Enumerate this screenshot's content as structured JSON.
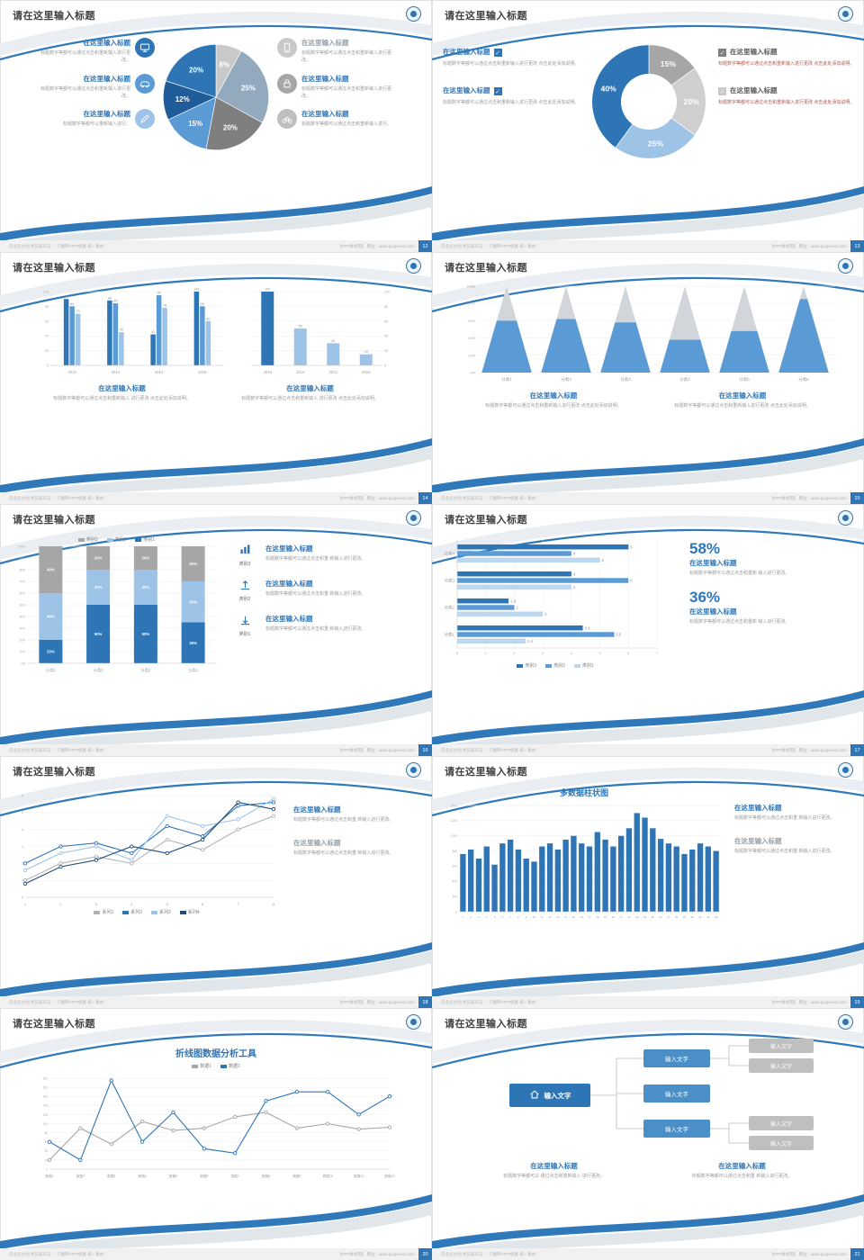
{
  "global": {
    "slide_title": "请在这里输入标题",
    "heading_label": "在这里输入标题",
    "footer_left": "毕业论文|论文答辩方法 ｜ 千图网·PPT模板·第一素材",
    "footer_right": "【PPT样式网】 网址：www.pptgenius.com",
    "colors": {
      "accent_blue": "#2e75b6",
      "blue_mid": "#5b9bd5",
      "blue_light": "#9dc3e6",
      "gray": "#a6a6a6",
      "navy": "#1f5c99",
      "red_text": "#b0574d"
    }
  },
  "slides": [
    {
      "page": "12",
      "left_items": [
        {
          "heading": "在这里输入标题",
          "text": "标题数字等都可以通过点击和重新输入进行更改。",
          "icon": "monitor"
        },
        {
          "heading": "在这里输入标题",
          "text": "标题数字等都可以通过点击和重新输入进行更改。",
          "icon": "car"
        },
        {
          "heading": "在这里输入标题",
          "text": "标题数字等都可以重新输入进行。",
          "icon": "pen"
        }
      ],
      "right_items": [
        {
          "heading": "在这里输入标题",
          "text": "标题数字等都可以通过点击和重新输入进行更改。",
          "icon": "smartphone"
        },
        {
          "heading": "在这里输入标题",
          "text": "标题数字等都可以通过点击和重新输入进行更改。",
          "icon": "lock"
        },
        {
          "heading": "在这里输入标题",
          "text": "标题数字等都可以通过点击和重新输入进行。",
          "icon": "bicycle"
        }
      ],
      "chart_data": {
        "type": "pie",
        "labels": [
          "8%",
          "25%",
          "20%",
          "15%",
          "12%",
          "20%"
        ],
        "values": [
          8,
          25,
          20,
          15,
          12,
          20
        ],
        "colors": [
          "#c9c9c9",
          "#93a9bd",
          "#7f7f7f",
          "#5b9bd5",
          "#1f5c99",
          "#2e75b6"
        ]
      }
    },
    {
      "page": "13",
      "left_items": [
        {
          "heading": "在这里输入标题",
          "text": "标题数字等都可以通过点击和重新输入进行更改 点击此处添加说明。"
        },
        {
          "heading": "在这里输入标题",
          "text": "标题数字等都可以通过点击和重新输入进行更改 点击此处添加说明。"
        }
      ],
      "right_items": [
        {
          "heading": "在这里输入标题",
          "text": "标题数字等都可以通过点击和重新输入进行更改 点击此处添加说明。"
        },
        {
          "heading": "在这里输入标题",
          "text": "标题数字等都可以通过点击和重新输入进行更改 点击此处添加说明。"
        }
      ],
      "chart_data": {
        "type": "pie",
        "subtype": "donut",
        "labels": [
          "15%",
          "20%",
          "25%",
          "40%"
        ],
        "values": [
          15,
          20,
          25,
          40
        ],
        "colors": [
          "#a6a6a6",
          "#cfcfcf",
          "#9dc3e6",
          "#2e75b6"
        ]
      }
    },
    {
      "page": "14",
      "sections": [
        {
          "heading": "在这里输入标题",
          "text": "标题数字等都可以通过点击和重新输入 进行更改 点击此处添加说明。"
        },
        {
          "heading": "在这里输入标题",
          "text": "标题数字等都可以通过点击和重新输入 进行更改 点击此处添加说明。"
        }
      ],
      "chart_data": [
        {
          "type": "bar",
          "categories": [
            "2010",
            "2012",
            "2014",
            "2016"
          ],
          "series": [
            {
              "name": "系列1",
              "color": "#2e75b6",
              "values": [
                90,
                88,
                42,
                100
              ]
            },
            {
              "name": "系列2",
              "color": "#5b9bd5",
              "values": [
                80,
                84,
                95,
                80
              ]
            },
            {
              "name": "系列3",
              "color": "#9dc3e6",
              "values": [
                70,
                45,
                78,
                60
              ]
            }
          ],
          "ylim": [
            0,
            100
          ]
        },
        {
          "type": "bar",
          "categories": [
            "2016",
            "2014",
            "2012",
            "2010"
          ],
          "series": [
            {
              "name": "数据",
              "colors": [
                "#2e75b6",
                "#9dc3e6",
                "#9dc3e6",
                "#9dc3e6"
              ],
              "values": [
                100,
                50,
                30,
                15
              ]
            }
          ],
          "ylim": [
            0,
            100
          ]
        }
      ]
    },
    {
      "page": "15",
      "sections": [
        {
          "heading": "在这里输入标题",
          "text": "标题数字等都可以通过点击和重新输入进行更改 点击此处添加说明。"
        },
        {
          "heading": "在这里输入标题",
          "text": "标题数字等都可以通过点击和重新输入进行更改 点击此处添加说明。"
        }
      ],
      "chart_data": {
        "type": "pyramid",
        "categories": [
          "分类1",
          "分类2",
          "分类3",
          "分类4",
          "分类5",
          "分类6"
        ],
        "values_pct": [
          60,
          62,
          58,
          38,
          48,
          85
        ],
        "ylim": [
          0,
          100
        ]
      }
    },
    {
      "page": "16",
      "right_items": [
        {
          "label": "类别3",
          "icon": "bar-chart",
          "heading": "在这里输入标题",
          "text": "标题数字等都可以通过点击和重 新输入进行更改。"
        },
        {
          "label": "类别2",
          "icon": "upload",
          "heading": "在这里输入标题",
          "text": "标题数字等都可以通过点击和重 新输入进行更改。"
        },
        {
          "label": "类别1",
          "icon": "download",
          "heading": "在这里输入标题",
          "text": "标题数字等都可以通过点击和重 新输入进行更改。"
        }
      ],
      "chart_data": {
        "type": "bar",
        "subtype": "stacked-100",
        "categories": [
          "分类1",
          "分类2",
          "分类3",
          "分类4"
        ],
        "series": [
          {
            "name": "类别1",
            "color": "#2e75b6",
            "values": [
              20,
              50,
              50,
              35
            ]
          },
          {
            "name": "类别2",
            "color": "#9dc3e6",
            "values": [
              40,
              30,
              30,
              35
            ]
          },
          {
            "name": "类别3",
            "color": "#a6a6a6",
            "values": [
              40,
              20,
              20,
              30
            ]
          }
        ],
        "legend": [
          "类别3",
          "类别2",
          "类别1"
        ],
        "ylim": [
          0,
          100
        ]
      }
    },
    {
      "page": "17",
      "stats": [
        {
          "value": "58%",
          "heading": "在这里输入标题",
          "text": "标题数字等都可以通过点击和重新 输入进行更改。"
        },
        {
          "value": "36%",
          "heading": "在这里输入标题",
          "text": "标题数字等都可以通过点击和重新 输入进行更改。"
        }
      ],
      "chart_data": {
        "type": "bar",
        "subtype": "horizontal",
        "categories": [
          "分类4",
          "分类3",
          "分类2",
          "分类1"
        ],
        "series": [
          {
            "name": "类别3",
            "color": "#2e75b6",
            "values": [
              6,
              4,
              1.8,
              4.4
            ]
          },
          {
            "name": "类别2",
            "color": "#5b9bd5",
            "values": [
              4,
              6,
              2,
              5.5
            ]
          },
          {
            "name": "类别1",
            "color": "#bdd7ee",
            "values": [
              5,
              4,
              3,
              2.4
            ]
          }
        ],
        "xlim": [
          0,
          7
        ],
        "legend": [
          "类别3",
          "类别2",
          "类别1"
        ]
      }
    },
    {
      "page": "18",
      "sections": [
        {
          "heading": "在这里输入标题",
          "text": "标题数字等都可以通过点击和重 新输入进行更改。"
        },
        {
          "heading": "在这里输入标题",
          "text": "标题数字等都可以通过点击和重 新输入进行更改。"
        }
      ],
      "chart_data": {
        "type": "line",
        "x_labels": [
          "1",
          "2",
          "3",
          "4",
          "5",
          "6",
          "7",
          "8"
        ],
        "series": [
          {
            "name": "系列1",
            "color": "#b3b3b3",
            "values": [
              1,
              2,
              2.4,
              2,
              3.4,
              2.8,
              4,
              4.8
            ]
          },
          {
            "name": "系列2",
            "color": "#2e75b6",
            "values": [
              2,
              3,
              3.2,
              2.6,
              4.2,
              3.6,
              5.4,
              5.6
            ]
          },
          {
            "name": "系列3",
            "color": "#9dc3e6",
            "values": [
              1.6,
              2.6,
              3,
              2.2,
              4.8,
              4.2,
              4.6,
              5.8
            ]
          },
          {
            "name": "系列4",
            "color": "#1f4e79",
            "values": [
              0.8,
              1.8,
              2.2,
              3,
              2.6,
              3.4,
              5.6,
              5.2
            ]
          }
        ],
        "ylim": [
          0,
          6
        ]
      }
    },
    {
      "page": "19",
      "chart_title": "多数据柱状图",
      "sections": [
        {
          "heading": "在这里输入标题",
          "text": "标题数字等都可以通过点击和重 新输入进行更改。"
        },
        {
          "heading": "在这里输入标题",
          "text": "标题数字等都可以通过点击和重 新输入进行更改。"
        }
      ],
      "chart_data": {
        "type": "bar",
        "title": "多数据柱状图",
        "x_labels": [
          "1",
          "2",
          "3",
          "4",
          "5",
          "6",
          "7",
          "8",
          "9",
          "10",
          "11",
          "12",
          "13",
          "14",
          "15",
          "16",
          "17",
          "18",
          "19",
          "20",
          "21",
          "22",
          "23",
          "24",
          "25",
          "26",
          "27",
          "28",
          "29",
          "30",
          "31",
          "32",
          "33"
        ],
        "values": [
          760,
          820,
          700,
          860,
          620,
          900,
          950,
          820,
          700,
          660,
          860,
          900,
          820,
          950,
          1000,
          900,
          860,
          1050,
          950,
          860,
          1000,
          1100,
          1300,
          1240,
          1100,
          960,
          900,
          860,
          760,
          820,
          900,
          860,
          800
        ],
        "ylim": [
          0,
          1400
        ]
      }
    },
    {
      "page": "20",
      "chart_title": "折线图数据分析工具",
      "chart_data": {
        "type": "line",
        "title": "折线图数据分析工具",
        "x_labels": [
          "数据1",
          "数据2",
          "数据3",
          "数据4",
          "数据5",
          "数据6",
          "数据7",
          "数据8",
          "数据9",
          "数据10",
          "数据11",
          "数据12"
        ],
        "series": [
          {
            "name": "数据1",
            "color": "#a6a6a6",
            "values": [
              20,
              90,
              55,
              105,
              85,
              90,
              115,
              125,
              90,
              100,
              88,
              92
            ]
          },
          {
            "name": "数据2",
            "color": "#2e75b6",
            "values": [
              60,
              20,
              195,
              60,
              125,
              45,
              35,
              150,
              170,
              170,
              120,
              160
            ]
          }
        ],
        "ylim": [
          0,
          200
        ]
      }
    },
    {
      "page": "21",
      "root_label": "输入文字",
      "mid_labels": [
        "输入文字",
        "输入文字",
        "输入文字"
      ],
      "right_labels": [
        "输入文字",
        "输入文字",
        "输入文字",
        "输入文字"
      ],
      "sections": [
        {
          "heading": "在这里输入标题",
          "text": "标题数字等都可以 通过点击和重新输入 进行更改。"
        },
        {
          "heading": "在这里输入标题",
          "text": "标题数字等都可以通过点击和重 新输入进行更改。"
        }
      ]
    }
  ]
}
